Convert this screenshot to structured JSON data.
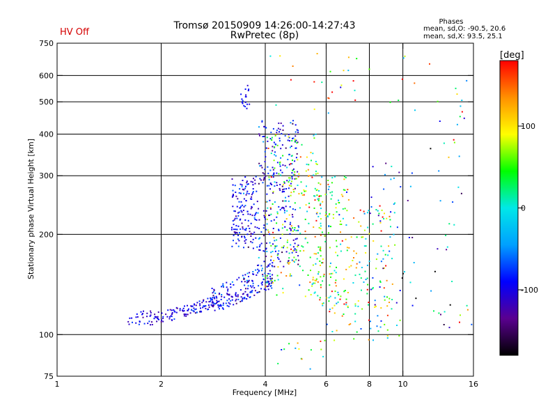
{
  "header": {
    "status": "HV Off",
    "title_line1": "Tromsø 20150909 14:26:00-14:27:43",
    "title_line2": "RwPretec (8p)"
  },
  "stats": {
    "title": "Phases",
    "line_o": "mean, sd,O: -90.5, 20.6",
    "line_x": "mean, sd,X:  93.5, 25.1"
  },
  "colorbar": {
    "unit": "[deg]",
    "ticks": [
      {
        "value": 100,
        "label": "100"
      },
      {
        "value": 0,
        "label": "0"
      },
      {
        "value": -100,
        "label": "-100"
      }
    ],
    "range": [
      -180,
      180
    ],
    "colors": [
      "#000000",
      "#5a0090",
      "#0000ff",
      "#00a0ff",
      "#00e8e8",
      "#00ff00",
      "#ffff00",
      "#ff9000",
      "#ff0000"
    ]
  },
  "chart_data": {
    "type": "scatter",
    "xlabel": "Frequency [MHz]",
    "ylabel": "Stationary phase Virtual Height [km]",
    "x_scale": "log",
    "y_scale": "log",
    "xlim": [
      1,
      16
    ],
    "ylim": [
      75,
      750
    ],
    "x_ticks": [
      1,
      2,
      4,
      6,
      8,
      10,
      16
    ],
    "y_ticks": [
      75,
      100,
      200,
      300,
      400,
      500,
      600,
      750
    ],
    "grid_x": [
      2,
      4,
      6,
      8,
      10
    ],
    "grid_y": [
      100,
      200,
      300,
      400,
      500,
      600
    ],
    "grid": true,
    "color_by": "phase [deg]",
    "clusters": [
      {
        "fmin": 1.6,
        "fmax": 2.0,
        "hmin": 107,
        "hmax": 118,
        "n": 40,
        "phase": -100,
        "phase_sd": 20,
        "slope": 0
      },
      {
        "fmin": 2.0,
        "fmax": 3.0,
        "hmin": 108,
        "hmax": 132,
        "n": 110,
        "phase": -100,
        "phase_sd": 20,
        "slope": 0.6
      },
      {
        "fmin": 2.8,
        "fmax": 4.2,
        "hmin": 115,
        "hmax": 165,
        "n": 180,
        "phase": -95,
        "phase_sd": 25,
        "slope": 0.5
      },
      {
        "fmin": 3.2,
        "fmax": 3.8,
        "hmin": 180,
        "hmax": 300,
        "n": 150,
        "phase": -95,
        "phase_sd": 20,
        "slope": 0
      },
      {
        "fmin": 3.4,
        "fmax": 3.6,
        "hmin": 470,
        "hmax": 560,
        "n": 18,
        "phase": -95,
        "phase_sd": 10,
        "slope": 0
      },
      {
        "fmin": 3.8,
        "fmax": 5.0,
        "hmin": 160,
        "hmax": 440,
        "n": 260,
        "phase": -95,
        "phase_sd": 30,
        "slope": 0
      },
      {
        "fmin": 4.0,
        "fmax": 5.8,
        "hmin": 130,
        "hmax": 400,
        "n": 220,
        "phase": 60,
        "phase_sd": 60,
        "slope": 0
      },
      {
        "fmin": 5.5,
        "fmax": 7.0,
        "hmin": 120,
        "hmax": 300,
        "n": 150,
        "phase": 60,
        "phase_sd": 60,
        "slope": 0
      },
      {
        "fmin": 7.0,
        "fmax": 9.5,
        "hmin": 120,
        "hmax": 250,
        "n": 90,
        "phase": 40,
        "phase_sd": 80,
        "slope": 0
      },
      {
        "fmin": 6.0,
        "fmax": 10.0,
        "hmin": 95,
        "hmax": 130,
        "n": 50,
        "phase": 60,
        "phase_sd": 80,
        "slope": 0
      },
      {
        "fmin": 8.0,
        "fmax": 11.0,
        "hmin": 120,
        "hmax": 330,
        "n": 40,
        "phase": -80,
        "phase_sd": 60,
        "slope": 0
      },
      {
        "fmin": 4.0,
        "fmax": 16.0,
        "hmin": 450,
        "hmax": 700,
        "n": 40,
        "phase": 60,
        "phase_sd": 90,
        "slope": 0
      },
      {
        "fmin": 12.0,
        "fmax": 16.0,
        "hmin": 100,
        "hmax": 450,
        "n": 35,
        "phase": 0,
        "phase_sd": 100,
        "slope": 0
      },
      {
        "fmin": 4.3,
        "fmax": 6.0,
        "hmin": 78,
        "hmax": 98,
        "n": 15,
        "phase": 40,
        "phase_sd": 80,
        "slope": 0
      }
    ]
  }
}
